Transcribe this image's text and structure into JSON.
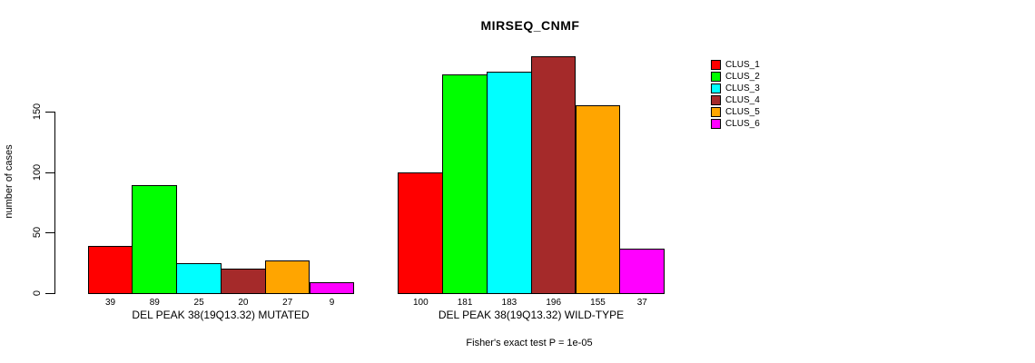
{
  "chart_data": {
    "type": "bar",
    "title": "MIRSEQ_CNMF",
    "ylabel": "number of cases",
    "xlabel": "",
    "annotation": "Fisher's exact test P = 1e-05",
    "yticks": [
      0,
      50,
      100,
      150
    ],
    "ylim": [
      0,
      200
    ],
    "grid": false,
    "legend_position": "right",
    "bar_value_labels_shown": true,
    "categories": [
      "DEL PEAK 38(19Q13.32) MUTATED",
      "DEL PEAK 38(19Q13.32) WILD-TYPE"
    ],
    "series": [
      {
        "name": "CLUS_1",
        "color": "#FF0000",
        "values": [
          39,
          100
        ]
      },
      {
        "name": "CLUS_2",
        "color": "#00FF00",
        "values": [
          89,
          181
        ]
      },
      {
        "name": "CLUS_3",
        "color": "#00FFFF",
        "values": [
          25,
          183
        ]
      },
      {
        "name": "CLUS_4",
        "color": "#A52A2A",
        "values": [
          20,
          196
        ]
      },
      {
        "name": "CLUS_5",
        "color": "#FFA500",
        "values": [
          27,
          155
        ]
      },
      {
        "name": "CLUS_6",
        "color": "#FF00FF",
        "values": [
          9,
          37
        ]
      }
    ],
    "axis_color": "#000000",
    "background_color": "#FFFFFF"
  }
}
